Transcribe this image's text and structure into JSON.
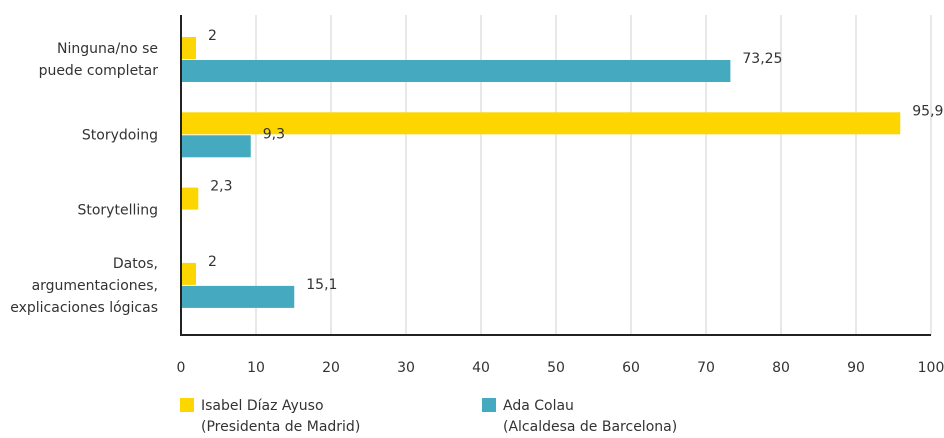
{
  "chart_data": {
    "type": "barh",
    "categories": [
      [
        "Ninguna/no se",
        "puede completar"
      ],
      [
        "Storydoing"
      ],
      [
        "Storytelling"
      ],
      [
        "Datos,",
        "argumentaciones,",
        "explicaciones lógicas"
      ]
    ],
    "series": [
      {
        "name": [
          "Isabel Díaz Ayuso",
          "(Presidenta de Madrid)"
        ],
        "color": "#fdd600",
        "values": [
          2,
          95.9,
          2.3,
          2
        ],
        "value_labels": [
          "2",
          "95,9",
          "2,3",
          "2"
        ]
      },
      {
        "name": [
          "Ada Colau",
          "(Alcaldesa de Barcelona)"
        ],
        "color": "#45a9bf",
        "values": [
          73.25,
          9.3,
          null,
          15.1
        ],
        "value_labels": [
          "73,25",
          "9,3",
          null,
          "15,1"
        ]
      }
    ],
    "xlim": [
      0,
      100
    ],
    "xticks": [
      0,
      10,
      20,
      30,
      40,
      50,
      60,
      70,
      80,
      90,
      100
    ],
    "grid": true
  }
}
